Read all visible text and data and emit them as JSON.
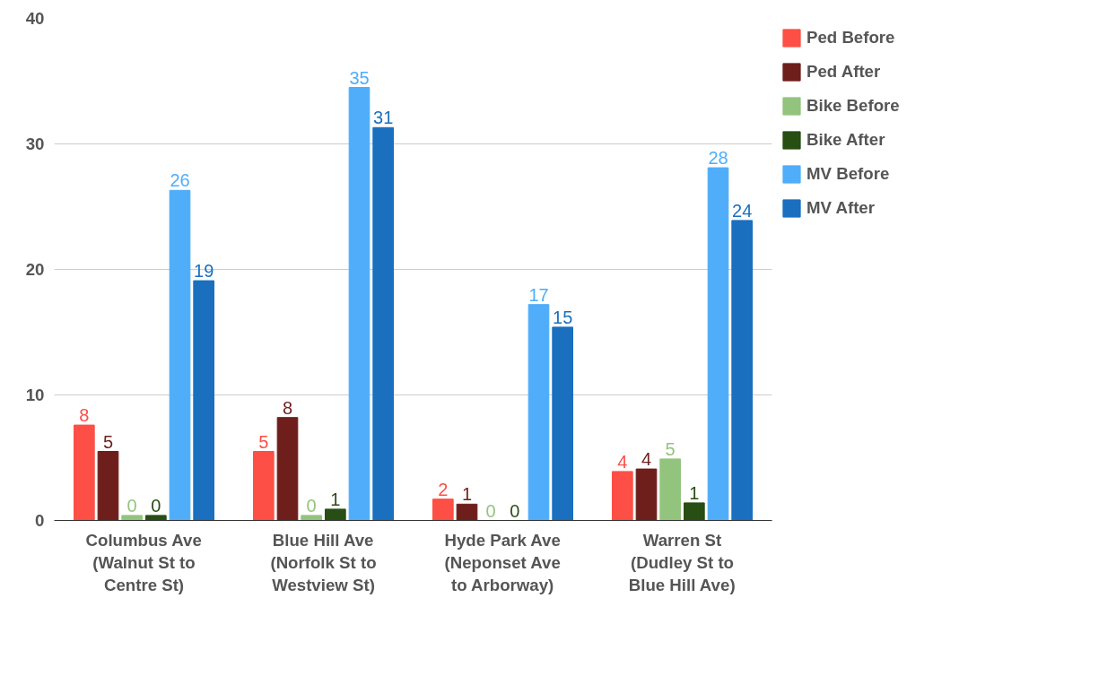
{
  "chart_data": {
    "type": "bar",
    "categories": [
      "Columbus Ave\n(Walnut St to\nCentre St)",
      "Blue Hill Ave\n(Norfolk St to\nWestview St)",
      "Hyde Park Ave\n(Neponset Ave\nto Arborway)",
      "Warren St\n(Dudley St to\nBlue Hill Ave)"
    ],
    "series": [
      {
        "name": "Ped Before",
        "color": "#fd4f45",
        "values": [
          7.6,
          5.5,
          1.7,
          3.9
        ],
        "value_labels": [
          "8",
          "5",
          "2",
          "4"
        ]
      },
      {
        "name": "Ped After",
        "color": "#6e1f1c",
        "values": [
          5.5,
          8.2,
          1.3,
          4.1
        ],
        "value_labels": [
          "5",
          "8",
          "1",
          "4"
        ]
      },
      {
        "name": "Bike Before",
        "color": "#93c47d",
        "values": [
          0.4,
          0.4,
          0,
          4.9
        ],
        "value_labels": [
          "0",
          "0",
          "0",
          "5"
        ]
      },
      {
        "name": "Bike After",
        "color": "#274e13",
        "values": [
          0.4,
          0.9,
          0,
          1.4
        ],
        "value_labels": [
          "0",
          "1",
          "0",
          "1"
        ]
      },
      {
        "name": "MV Before",
        "color": "#4fadfa",
        "values": [
          26.3,
          34.5,
          17.2,
          28.1
        ],
        "value_labels": [
          "26",
          "35",
          "17",
          "28"
        ]
      },
      {
        "name": "MV After",
        "color": "#1a6fbf",
        "values": [
          19.1,
          31.3,
          15.4,
          23.9
        ],
        "value_labels": [
          "19",
          "31",
          "15",
          "24"
        ]
      }
    ],
    "ylim": [
      0,
      40
    ],
    "yticks": [
      0,
      10,
      20,
      30,
      40
    ],
    "grid": "y",
    "legend": "top right"
  }
}
